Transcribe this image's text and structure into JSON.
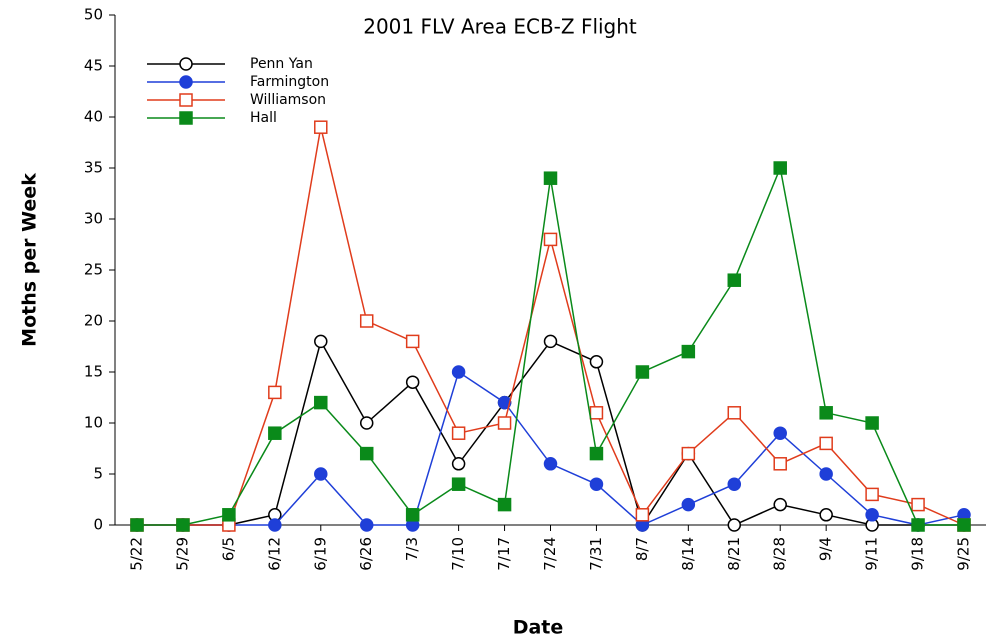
{
  "chart_data": {
    "type": "line",
    "title": "2001  FLV  Area  ECB-Z  Flight",
    "x_label": "Date",
    "y_label": "Moths  per  Week",
    "categories": [
      "5/22",
      "5/29",
      "6/5",
      "6/12",
      "6/19",
      "6/26",
      "7/3",
      "7/10",
      "7/17",
      "7/24",
      "7/31",
      "8/7",
      "8/14",
      "8/21",
      "8/28",
      "9/4",
      "9/11",
      "9/18",
      "9/25"
    ],
    "series": [
      {
        "name": "Penn Yan",
        "color": "#000000",
        "marker": "circle-open",
        "values": [
          0,
          0,
          0,
          1,
          18,
          10,
          14,
          6,
          12,
          18,
          16,
          0,
          7,
          0,
          2,
          1,
          0,
          0,
          0
        ]
      },
      {
        "name": "Farmington",
        "color": "#1f3fd8",
        "marker": "circle-filled",
        "values": [
          0,
          0,
          0,
          0,
          5,
          0,
          0,
          15,
          12,
          6,
          4,
          0,
          2,
          4,
          9,
          5,
          1,
          0,
          1
        ]
      },
      {
        "name": "Williamson",
        "color": "#e03c1c",
        "marker": "square-open",
        "values": [
          0,
          0,
          0,
          13,
          39,
          20,
          18,
          9,
          10,
          28,
          11,
          1,
          7,
          11,
          6,
          8,
          3,
          2,
          0
        ]
      },
      {
        "name": "Hall",
        "color": "#0a8a1a",
        "marker": "square-filled",
        "values": [
          0,
          0,
          1,
          9,
          12,
          7,
          1,
          4,
          2,
          34,
          7,
          15,
          17,
          24,
          35,
          11,
          10,
          0,
          0
        ]
      }
    ],
    "ylim": [
      0,
      50
    ],
    "yticks": [
      0,
      5,
      10,
      15,
      20,
      25,
      30,
      35,
      40,
      45,
      50
    ],
    "legend": "upper left"
  }
}
